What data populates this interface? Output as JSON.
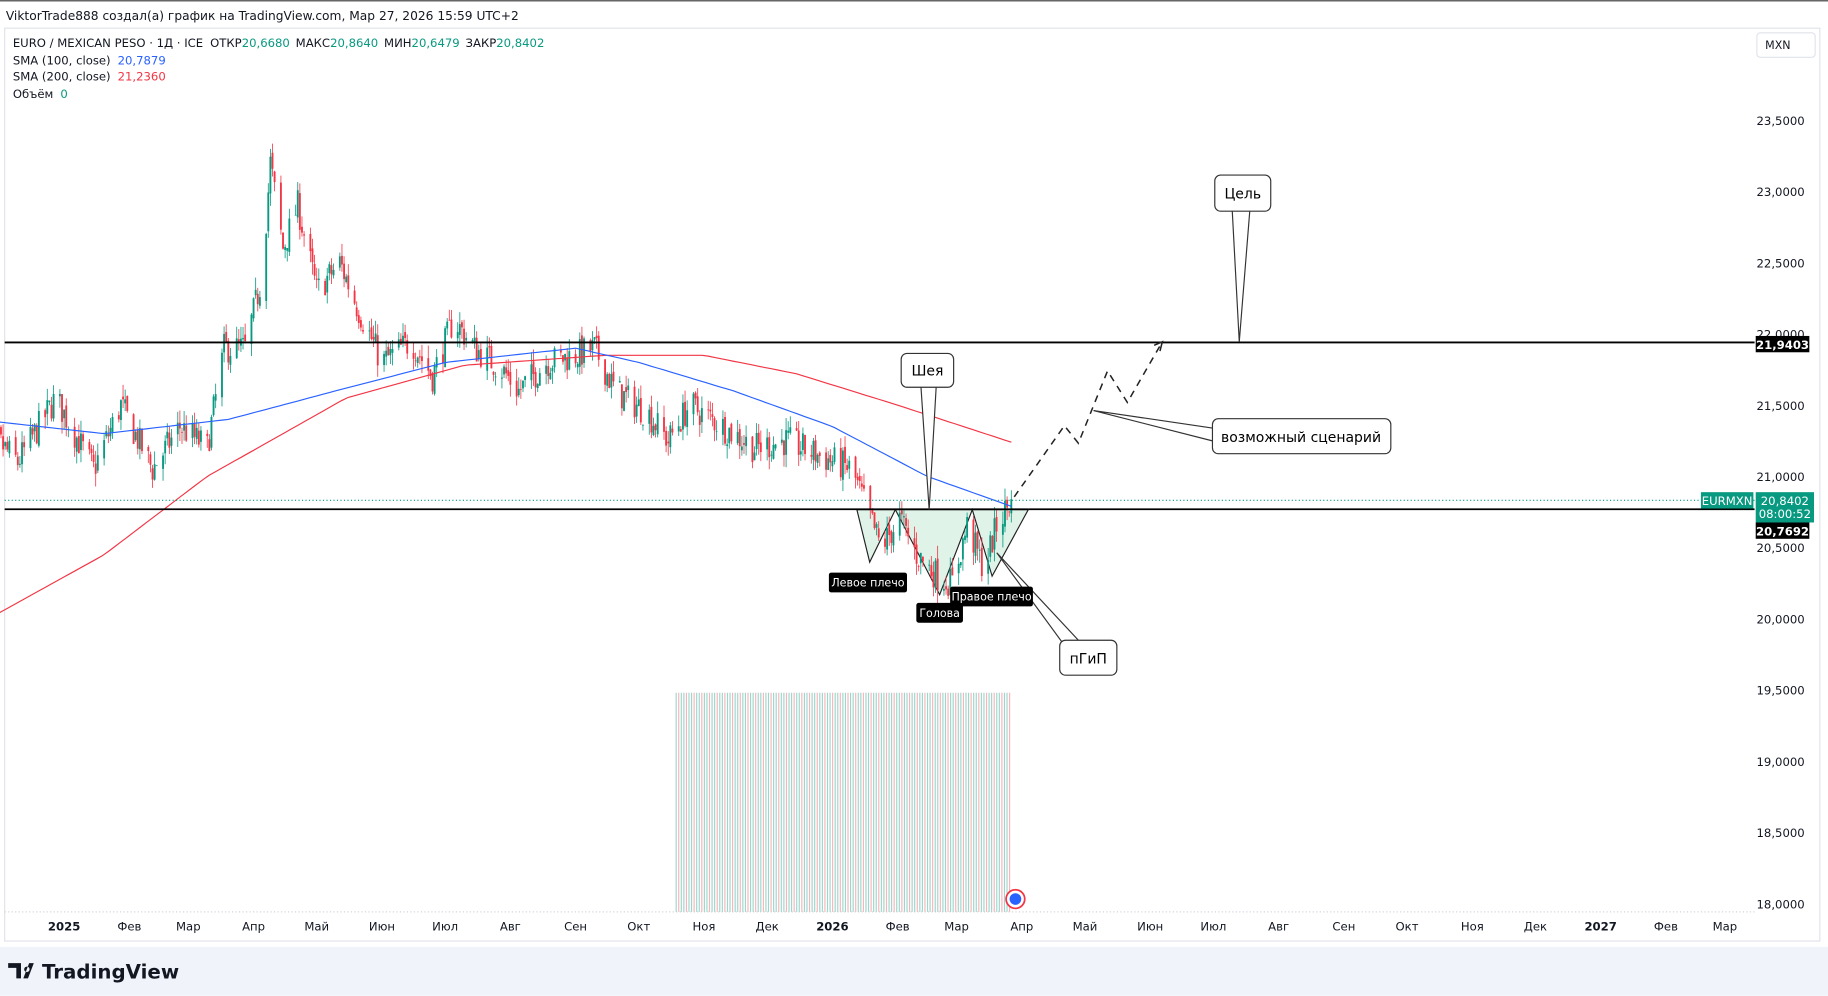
{
  "header": {
    "attribution": "ViktorTrade888 создал(а) график на TradingView.com, Мар 27, 2026 15:59 UTC+2"
  },
  "legend": {
    "symbol": "EURO / MEXICAN PESO · 1Д · ICE",
    "open_label": "ОТКР",
    "open": "20,6680",
    "high_label": "МАКС",
    "high": "20,8640",
    "low_label": "МИН",
    "low": "20,6479",
    "close_label": "ЗАКР",
    "close": "20,8402",
    "sma100_label": "SMA (100, close)",
    "sma100": "20,7879",
    "sma200_label": "SMA (200, close)",
    "sma200": "21,2360",
    "volume_label": "Объём",
    "volume": "0"
  },
  "currency_button": "MXN",
  "price_tags": {
    "symbol": "EURMXN",
    "last": "20,8402",
    "countdown": "08:00:52",
    "level_upper": "21,9403",
    "level_lower": "20,7692"
  },
  "annotations": {
    "neck": "Шея",
    "target": "Цель",
    "scenario": "возможный сценарий",
    "pattern": "пГиП",
    "left_shoulder": "Левое плечо",
    "head": "Голова",
    "right_shoulder": "Правое плечо"
  },
  "footer": {
    "logo": "TradingView"
  },
  "colors": {
    "up": "#089981",
    "down": "#f23645",
    "sma100": "#2962ff",
    "sma200": "#f23645"
  },
  "chart_data": {
    "type": "candlestick",
    "title": "EURO / MEXICAN PESO · 1Д · ICE",
    "ylim": [
      18.0,
      23.5
    ],
    "y_ticks": [
      "23,5000",
      "23,0000",
      "22,5000",
      "22,0000",
      "21,5000",
      "21,0000",
      "20,5000",
      "20,0000",
      "19,5000",
      "19,0000",
      "18,5000",
      "18,0000"
    ],
    "y_tick_values": [
      23.5,
      23,
      22.5,
      22,
      21.5,
      21,
      20.5,
      20,
      19.5,
      19,
      18.5,
      18
    ],
    "x_ticks": [
      {
        "label": "2025",
        "date": "2025-01-01",
        "bold": true
      },
      {
        "label": "Фев",
        "date": "2025-02-01"
      },
      {
        "label": "Мар",
        "date": "2025-03-01"
      },
      {
        "label": "Апр",
        "date": "2025-04-01"
      },
      {
        "label": "Май",
        "date": "2025-05-01"
      },
      {
        "label": "Июн",
        "date": "2025-06-01"
      },
      {
        "label": "Июл",
        "date": "2025-07-01"
      },
      {
        "label": "Авг",
        "date": "2025-08-01"
      },
      {
        "label": "Сен",
        "date": "2025-09-01"
      },
      {
        "label": "Окт",
        "date": "2025-10-01"
      },
      {
        "label": "Ноя",
        "date": "2025-11-01"
      },
      {
        "label": "Дек",
        "date": "2025-12-01"
      },
      {
        "label": "2026",
        "date": "2026-01-01",
        "bold": true
      },
      {
        "label": "Фев",
        "date": "2026-02-01"
      },
      {
        "label": "Мар",
        "date": "2026-03-01"
      },
      {
        "label": "Апр",
        "date": "2026-04-01"
      },
      {
        "label": "Май",
        "date": "2026-05-01"
      },
      {
        "label": "Июн",
        "date": "2026-06-01"
      },
      {
        "label": "Июл",
        "date": "2026-07-01"
      },
      {
        "label": "Авг",
        "date": "2026-08-01"
      },
      {
        "label": "Сен",
        "date": "2026-09-01"
      },
      {
        "label": "Окт",
        "date": "2026-10-01"
      },
      {
        "label": "Ноя",
        "date": "2026-11-01"
      },
      {
        "label": "Дек",
        "date": "2026-12-01"
      },
      {
        "label": "2027",
        "date": "2027-01-01",
        "bold": true
      },
      {
        "label": "Фев",
        "date": "2027-02-01"
      },
      {
        "label": "Мар",
        "date": "2027-03-01"
      }
    ],
    "price_keypoints": [
      [
        "2024-11-20",
        21.4
      ],
      [
        "2024-12-10",
        21.1
      ],
      [
        "2024-12-28",
        21.55
      ],
      [
        "2025-01-15",
        21.05
      ],
      [
        "2025-01-28",
        21.5
      ],
      [
        "2025-02-12",
        21.05
      ],
      [
        "2025-02-25",
        21.35
      ],
      [
        "2025-03-10",
        21.2
      ],
      [
        "2025-03-18",
        21.9
      ],
      [
        "2025-03-28",
        21.9
      ],
      [
        "2025-04-05",
        22.4
      ],
      [
        "2025-04-09",
        23.2
      ],
      [
        "2025-04-15",
        22.6
      ],
      [
        "2025-04-22",
        22.9
      ],
      [
        "2025-05-01",
        22.3
      ],
      [
        "2025-05-12",
        22.5
      ],
      [
        "2025-05-20",
        22.2
      ],
      [
        "2025-06-01",
        21.8
      ],
      [
        "2025-06-15",
        21.95
      ],
      [
        "2025-06-25",
        21.7
      ],
      [
        "2025-07-05",
        22.1
      ],
      [
        "2025-07-15",
        21.9
      ],
      [
        "2025-07-28",
        21.75
      ],
      [
        "2025-08-05",
        21.6
      ],
      [
        "2025-08-18",
        21.8
      ],
      [
        "2025-09-01",
        21.85
      ],
      [
        "2025-09-10",
        21.9
      ],
      [
        "2025-09-20",
        21.6
      ],
      [
        "2025-10-05",
        21.45
      ],
      [
        "2025-10-15",
        21.25
      ],
      [
        "2025-10-25",
        21.5
      ],
      [
        "2025-11-10",
        21.35
      ],
      [
        "2025-11-25",
        21.2
      ],
      [
        "2025-12-10",
        21.25
      ],
      [
        "2025-12-25",
        21.15
      ],
      [
        "2026-01-10",
        21.05
      ],
      [
        "2026-01-18",
        20.75
      ],
      [
        "2026-01-24",
        20.5
      ],
      [
        "2026-02-02",
        20.7
      ],
      [
        "2026-02-10",
        20.45
      ],
      [
        "2026-02-20",
        20.3
      ],
      [
        "2026-02-27",
        20.25
      ],
      [
        "2026-03-06",
        20.65
      ],
      [
        "2026-03-14",
        20.35
      ],
      [
        "2026-03-20",
        20.65
      ],
      [
        "2026-03-27",
        20.84
      ]
    ],
    "sma100_keypoints": [
      [
        "2024-11-20",
        21.4
      ],
      [
        "2025-01-20",
        21.3
      ],
      [
        "2025-03-20",
        21.4
      ],
      [
        "2025-05-10",
        21.6
      ],
      [
        "2025-07-01",
        21.8
      ],
      [
        "2025-09-01",
        21.9
      ],
      [
        "2025-10-01",
        21.8
      ],
      [
        "2025-11-15",
        21.6
      ],
      [
        "2026-01-01",
        21.35
      ],
      [
        "2026-02-15",
        21.0
      ],
      [
        "2026-03-27",
        20.79
      ]
    ],
    "sma200_keypoints": [
      [
        "2024-11-20",
        19.95
      ],
      [
        "2025-01-20",
        20.45
      ],
      [
        "2025-03-10",
        21.0
      ],
      [
        "2025-05-15",
        21.55
      ],
      [
        "2025-07-10",
        21.78
      ],
      [
        "2025-09-15",
        21.85
      ],
      [
        "2025-11-01",
        21.85
      ],
      [
        "2025-12-15",
        21.72
      ],
      [
        "2026-02-01",
        21.5
      ],
      [
        "2026-03-27",
        21.24
      ]
    ],
    "horizontal_levels": [
      21.9403,
      20.7692
    ]
  }
}
